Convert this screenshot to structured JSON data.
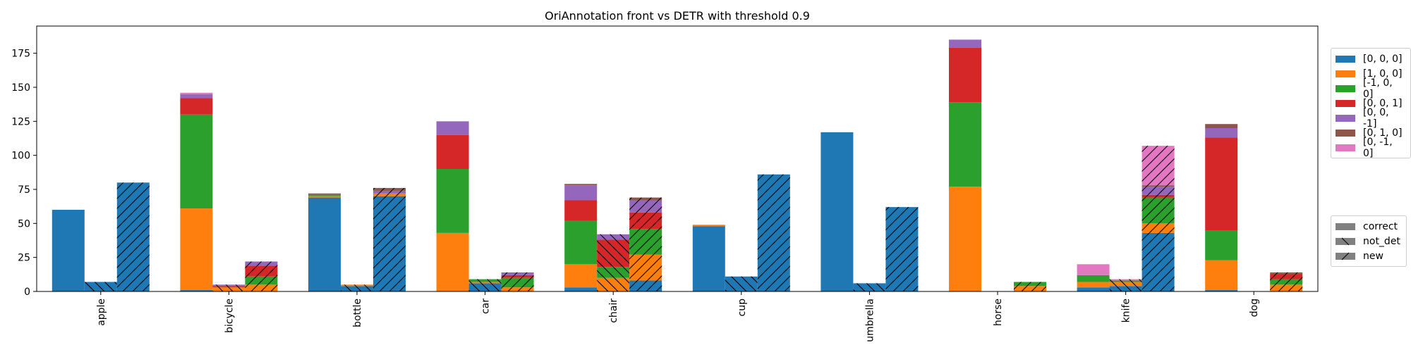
{
  "chart_data": {
    "type": "bar",
    "title": "OriAnnotation front vs DETR with threshold 0.9",
    "xlabel": "",
    "ylabel": "",
    "ylim": [
      0,
      195
    ],
    "yticks": [
      0,
      25,
      50,
      75,
      100,
      125,
      150,
      175
    ],
    "grid": false,
    "categories": [
      "apple",
      "bicycle",
      "bottle",
      "car",
      "chair",
      "cup",
      "umbrella",
      "horse",
      "knife",
      "dog"
    ],
    "kinds": [
      {
        "name": "correct",
        "hatch": "none"
      },
      {
        "name": "not_det",
        "hatch": "back"
      },
      {
        "name": "new",
        "hatch": "forward"
      }
    ],
    "series": [
      {
        "name": "[0, 0, 0]",
        "color": "#1f77b4",
        "correct": [
          60,
          1,
          69,
          0,
          3,
          48,
          117,
          0,
          3,
          1
        ],
        "not_det": [
          7,
          0,
          4,
          6,
          0,
          11,
          6,
          0,
          4,
          0
        ],
        "new": [
          80,
          0,
          70,
          0,
          8,
          86,
          62,
          0,
          43,
          0
        ]
      },
      {
        "name": "[1, 0, 0]",
        "color": "#ff7f0e",
        "correct": [
          0,
          60,
          1,
          43,
          17,
          1,
          0,
          77,
          4,
          22
        ],
        "not_det": [
          0,
          3,
          1,
          1,
          10,
          0,
          0,
          0,
          3,
          0
        ],
        "new": [
          0,
          5,
          2,
          3,
          19,
          0,
          0,
          4,
          7,
          5
        ]
      },
      {
        "name": "[-1, 0, 0]",
        "color": "#2ca02c",
        "correct": [
          0,
          69,
          1,
          47,
          32,
          0,
          0,
          62,
          5,
          22
        ],
        "not_det": [
          0,
          0,
          0,
          2,
          8,
          0,
          0,
          0,
          1,
          0
        ],
        "new": [
          0,
          6,
          0,
          7,
          19,
          0,
          0,
          3,
          19,
          4
        ]
      },
      {
        "name": "[0, 0, 1]",
        "color": "#d62728",
        "correct": [
          0,
          12,
          0,
          25,
          15,
          0,
          0,
          40,
          0,
          68
        ],
        "not_det": [
          0,
          1,
          0,
          0,
          20,
          0,
          0,
          0,
          0,
          0
        ],
        "new": [
          0,
          8,
          0,
          2,
          12,
          0,
          0,
          0,
          2,
          4
        ]
      },
      {
        "name": "[0, 0, -1]",
        "color": "#9467bd",
        "correct": [
          0,
          3,
          0,
          10,
          11,
          0,
          0,
          6,
          0,
          7
        ],
        "not_det": [
          0,
          1,
          0,
          0,
          4,
          0,
          0,
          0,
          0,
          0
        ],
        "new": [
          0,
          3,
          2,
          2,
          9,
          0,
          0,
          0,
          6,
          0
        ]
      },
      {
        "name": "[0, 1, 0]",
        "color": "#8c564b",
        "correct": [
          0,
          0,
          1,
          0,
          1,
          0,
          0,
          0,
          0,
          3
        ],
        "not_det": [
          0,
          0,
          0,
          0,
          0,
          0,
          0,
          0,
          0,
          0
        ],
        "new": [
          0,
          0,
          2,
          0,
          2,
          0,
          0,
          0,
          1,
          1
        ]
      },
      {
        "name": "[0, -1, 0]",
        "color": "#e377c2",
        "correct": [
          0,
          1,
          0,
          0,
          0,
          0,
          0,
          0,
          8,
          0
        ],
        "not_det": [
          0,
          0,
          0,
          0,
          0,
          0,
          0,
          0,
          1,
          0
        ],
        "new": [
          0,
          0,
          0,
          0,
          0,
          0,
          0,
          0,
          29,
          0
        ]
      }
    ],
    "legend_placement": "right"
  }
}
